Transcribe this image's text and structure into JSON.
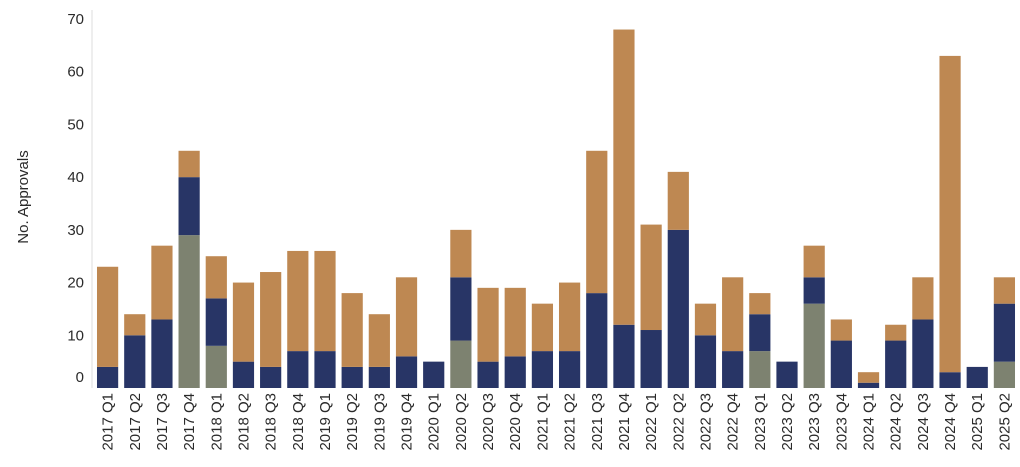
{
  "chart_data": {
    "type": "bar",
    "stacked": true,
    "ylabel": "No. Approvals",
    "xlabel": "",
    "ylim": [
      0,
      70
    ],
    "yticks": [
      0,
      10,
      20,
      30,
      40,
      50,
      60,
      70
    ],
    "grid": false,
    "legend": "none",
    "categories": [
      "2017 Q1",
      "2017 Q2",
      "2017 Q3",
      "2017 Q4",
      "2018 Q1",
      "2018 Q2",
      "2018 Q3",
      "2018 Q4",
      "2019 Q1",
      "2019 Q2",
      "2019 Q3",
      "2019 Q4",
      "2020 Q1",
      "2020 Q2",
      "2020 Q3",
      "2020 Q4",
      "2021 Q1",
      "2021 Q2",
      "2021 Q3",
      "2021 Q4",
      "2022 Q1",
      "2022 Q2",
      "2022 Q3",
      "2022 Q4",
      "2023 Q1",
      "2023 Q2",
      "2023 Q3",
      "2023 Q4",
      "2024 Q1",
      "2024 Q2",
      "2024 Q3",
      "2024 Q4",
      "2025 Q1",
      "2025 Q2"
    ],
    "series": [
      {
        "color": "#7d8270",
        "values": [
          0,
          0,
          0,
          29,
          8,
          0,
          0,
          0,
          0,
          0,
          0,
          0,
          0,
          9,
          0,
          0,
          0,
          0,
          0,
          0,
          0,
          0,
          0,
          0,
          7,
          0,
          16,
          0,
          0,
          0,
          0,
          0,
          0,
          5
        ]
      },
      {
        "color": "#283566",
        "values": [
          4,
          10,
          13,
          11,
          9,
          5,
          4,
          7,
          7,
          4,
          4,
          6,
          5,
          12,
          5,
          6,
          7,
          7,
          18,
          12,
          11,
          30,
          10,
          7,
          7,
          5,
          5,
          9,
          1,
          9,
          13,
          3,
          4,
          11
        ]
      },
      {
        "color": "#be8852",
        "values": [
          19,
          4,
          14,
          5,
          8,
          15,
          18,
          19,
          19,
          14,
          10,
          15,
          0,
          9,
          14,
          13,
          9,
          13,
          27,
          56,
          20,
          11,
          6,
          14,
          4,
          0,
          6,
          4,
          2,
          3,
          8,
          60,
          0,
          5
        ]
      }
    ]
  }
}
